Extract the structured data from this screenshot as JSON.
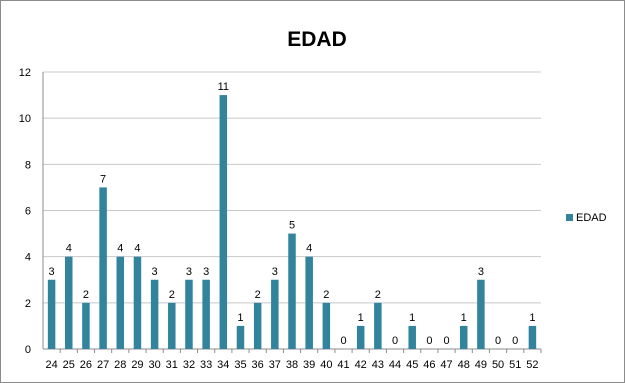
{
  "chart_data": {
    "type": "bar",
    "title": "EDAD",
    "xlabel": "",
    "ylabel": "",
    "ylim": [
      0,
      12
    ],
    "yticks": [
      0,
      2,
      4,
      6,
      8,
      10,
      12
    ],
    "grid": true,
    "legend_position": "right",
    "categories": [
      "24",
      "25",
      "26",
      "27",
      "28",
      "29",
      "30",
      "31",
      "32",
      "33",
      "34",
      "35",
      "36",
      "37",
      "38",
      "39",
      "40",
      "41",
      "42",
      "43",
      "44",
      "45",
      "46",
      "47",
      "48",
      "49",
      "50",
      "51",
      "52"
    ],
    "series": [
      {
        "name": "EDAD",
        "color": "#31849b",
        "values": [
          3,
          4,
          2,
          7,
          4,
          4,
          3,
          2,
          3,
          3,
          11,
          1,
          2,
          3,
          5,
          4,
          2,
          0,
          1,
          2,
          0,
          1,
          0,
          0,
          1,
          3,
          0,
          0,
          1
        ]
      }
    ]
  }
}
